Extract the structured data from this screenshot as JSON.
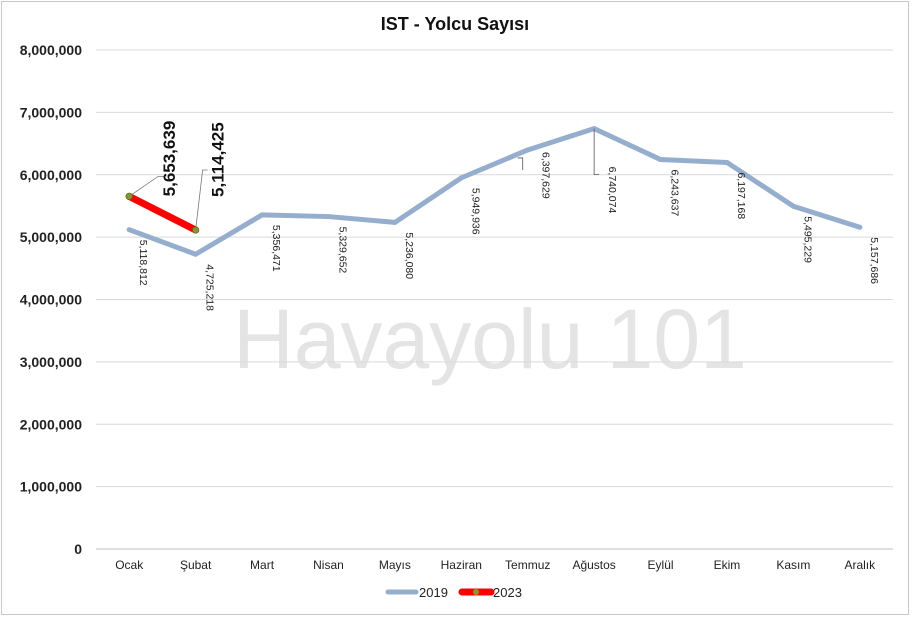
{
  "watermark": "Havayolu 101",
  "chart_data": {
    "type": "line",
    "title": "IST - Yolcu Sayısı",
    "xlabel": "",
    "ylabel": "",
    "categories": [
      "Ocak",
      "Şubat",
      "Mart",
      "Nisan",
      "Mayıs",
      "Haziran",
      "Temmuz",
      "Ağustos",
      "Eylül",
      "Ekim",
      "Kasım",
      "Aralık"
    ],
    "ylim": [
      0,
      8000000
    ],
    "yticks": [
      0,
      1000000,
      2000000,
      3000000,
      4000000,
      5000000,
      6000000,
      7000000,
      8000000
    ],
    "ytick_labels": [
      "0",
      "1,000,000",
      "2,000,000",
      "3,000,000",
      "4,000,000",
      "5,000,000",
      "6,000,000",
      "7,000,000",
      "8,000,000"
    ],
    "grid": true,
    "legend_position": "bottom",
    "series": [
      {
        "name": "2019",
        "color": "#95aece",
        "values": [
          5118812,
          4725218,
          5356471,
          5329652,
          5236080,
          5949936,
          6397629,
          6740074,
          6243637,
          6197168,
          5495229,
          5157686
        ],
        "labels": [
          "5,118,812",
          "4,725,218",
          "5,356,471",
          "5,329,652",
          "5,236,080",
          "5,949,936",
          "6,397,629",
          "6,740,074",
          "6,243,637",
          "6,197,168",
          "5,495,229",
          "5,157,686"
        ]
      },
      {
        "name": "2023",
        "color": "#ff0000",
        "marker_color": "#8a9a2a",
        "values": [
          5653639,
          5114425,
          null,
          null,
          null,
          null,
          null,
          null,
          null,
          null,
          null,
          null
        ],
        "labels": [
          "5,653,639",
          "5,114,425"
        ]
      }
    ]
  }
}
